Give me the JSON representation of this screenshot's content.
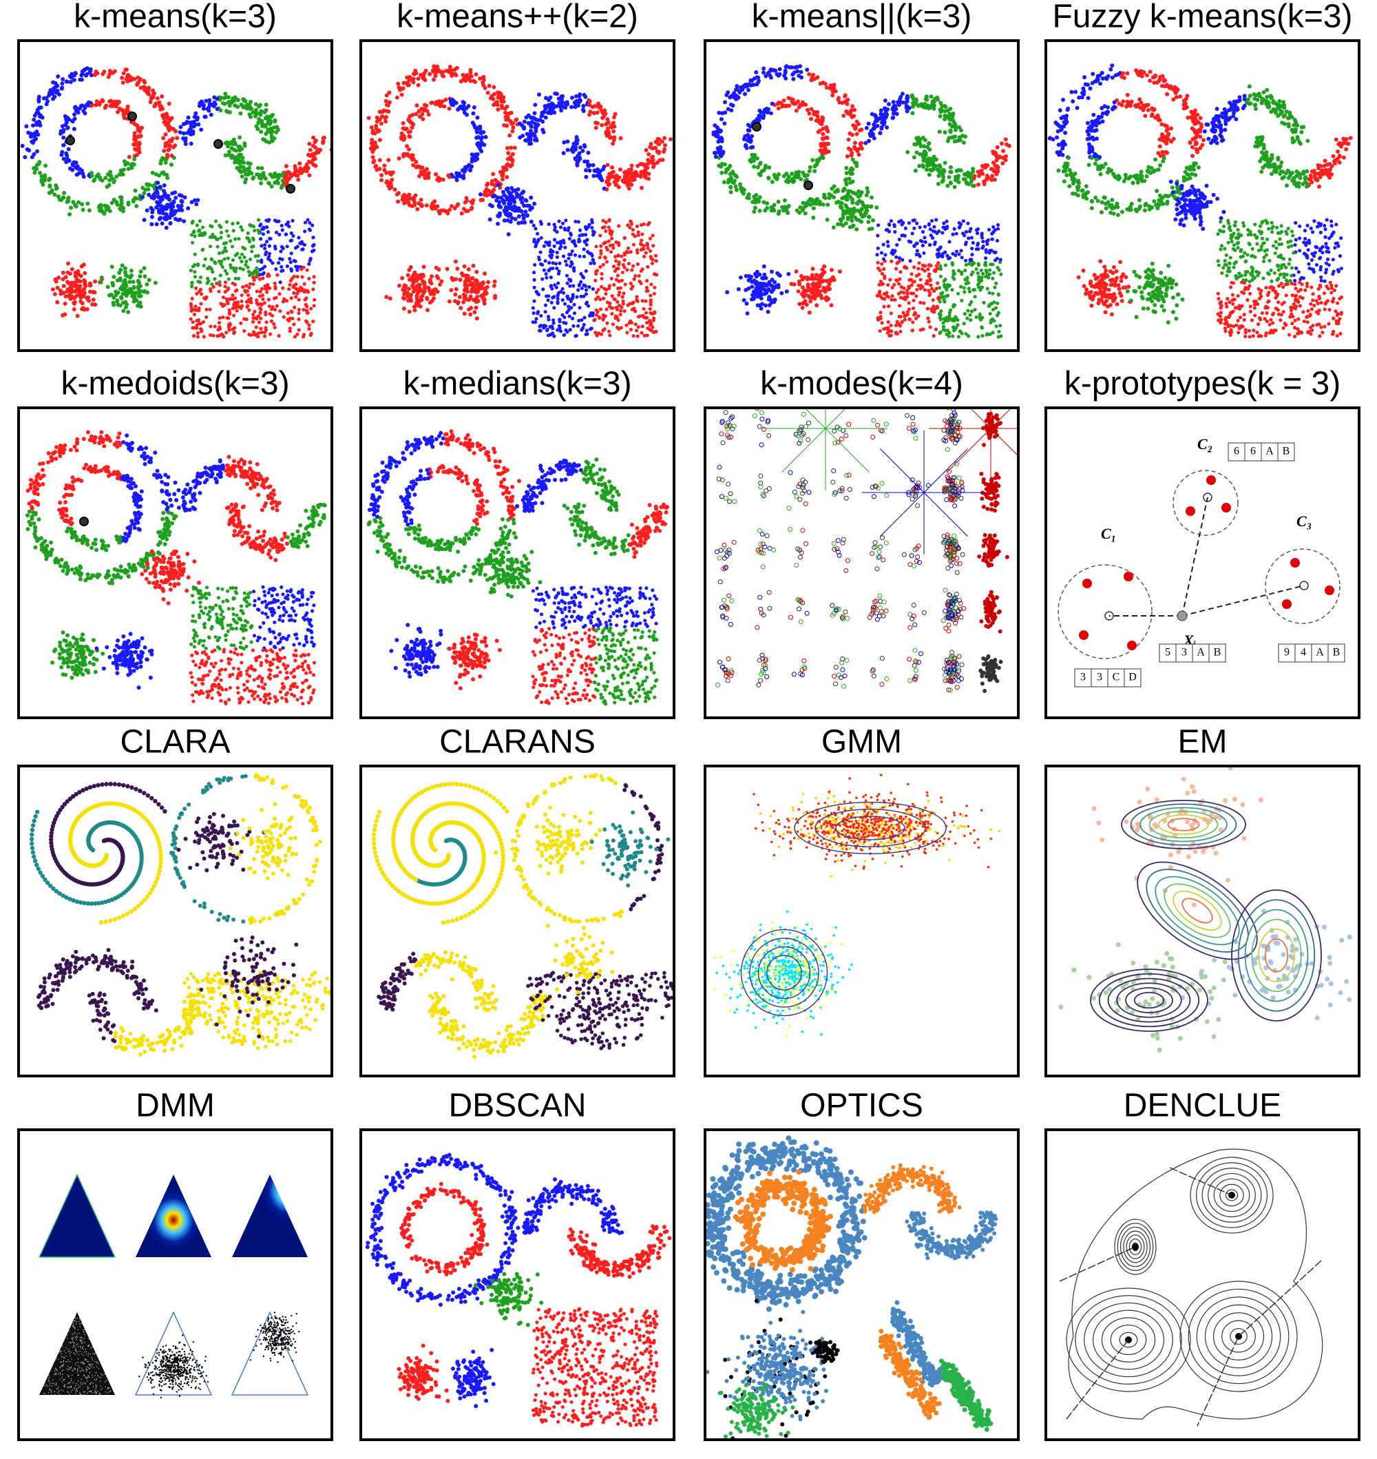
{
  "panels": [
    {
      "title": "k-means(k=3)"
    },
    {
      "title": "k-means++(k=2)"
    },
    {
      "title": "k-means||(k=3)"
    },
    {
      "title": "Fuzzy k-means(k=3)"
    },
    {
      "title": "k-medoids(k=3)"
    },
    {
      "title": "k-medians(k=3)"
    },
    {
      "title": "k-modes(k=4)"
    },
    {
      "title": "k-prototypes(k = 3)",
      "clusters": [
        {
          "label": "C₁",
          "cells": [
            "3",
            "3",
            "C",
            "D"
          ]
        },
        {
          "label": "C₂",
          "cells": [
            "6",
            "6",
            "A",
            "B"
          ]
        },
        {
          "label": "C₃",
          "cells": [
            "9",
            "4",
            "A",
            "B"
          ]
        }
      ],
      "point": {
        "label": "Xᵢ",
        "cells": [
          "5",
          "3",
          "A",
          "B"
        ]
      }
    },
    {
      "title": "CLARA"
    },
    {
      "title": "CLARANS"
    },
    {
      "title": "GMM"
    },
    {
      "title": "EM"
    },
    {
      "title": "DMM"
    },
    {
      "title": "DBSCAN"
    },
    {
      "title": "OPTICS"
    },
    {
      "title": "DENCLUE"
    }
  ]
}
